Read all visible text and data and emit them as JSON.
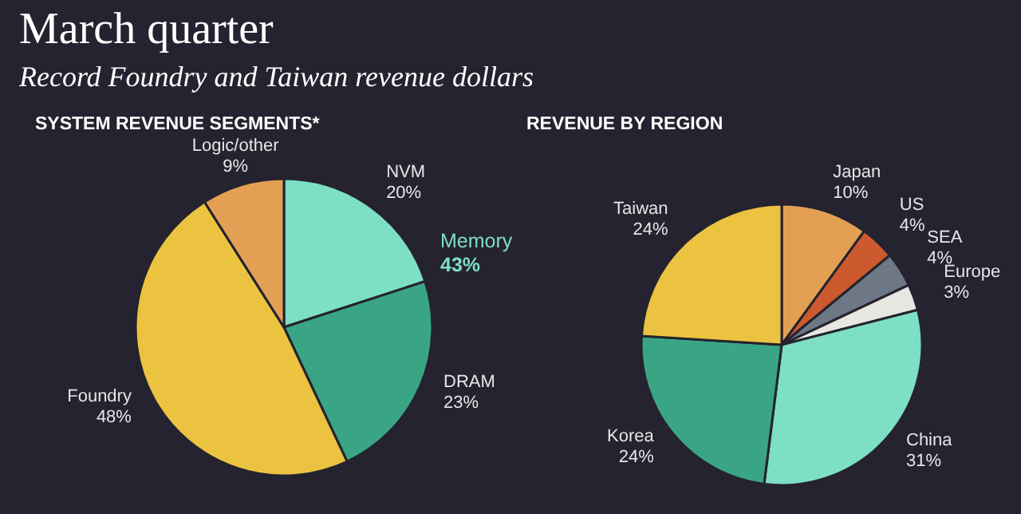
{
  "chart_data": [
    {
      "type": "other",
      "title": "March quarter",
      "subtitle": "Record Foundry and Taiwan revenue dollars"
    },
    {
      "type": "pie",
      "title": "SYSTEM REVENUE SEGMENTS*",
      "categories": [
        "NVM",
        "DRAM",
        "Foundry",
        "Logic/other"
      ],
      "values": [
        20,
        23,
        48,
        9
      ],
      "colors": [
        "#7ddfc3",
        "#3aa585",
        "#ecc340",
        "#e3a055"
      ],
      "value_labels": [
        "20%",
        "23%",
        "48%",
        "9%"
      ],
      "annotations": [
        "Memory 43%"
      ]
    },
    {
      "type": "pie",
      "title": "REVENUE BY REGION",
      "categories": [
        "Japan",
        "US",
        "SEA",
        "Europe",
        "China",
        "Korea",
        "Taiwan"
      ],
      "values": [
        10,
        4,
        4,
        3,
        31,
        24,
        24
      ],
      "colors": [
        "#e3a055",
        "#cc5a2e",
        "#6e7785",
        "#e8e6e1",
        "#7ddfc3",
        "#3aa585",
        "#ecc340"
      ],
      "value_labels": [
        "10%",
        "4%",
        "4%",
        "3%",
        "31%",
        "24%",
        "24%"
      ]
    }
  ]
}
